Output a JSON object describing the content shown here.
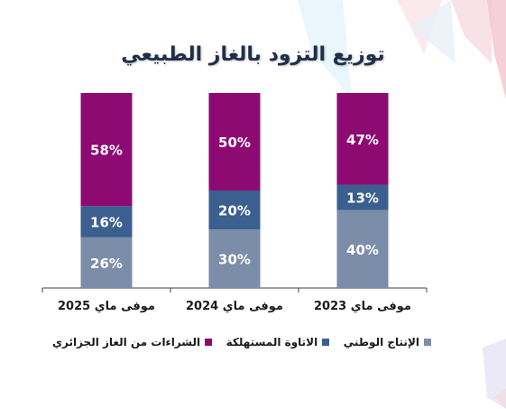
{
  "chart_data": {
    "type": "bar",
    "stacked": true,
    "percent": true,
    "title": "توزيع التزود بالغاز الطبيعي",
    "categories": [
      "موفى ماي  2023",
      "موفى ماي  2024",
      "موفى ماي  2025"
    ],
    "series": [
      {
        "name": "الإنتاج الوطني",
        "color": "#7b8da8",
        "values": [
          40,
          30,
          26
        ]
      },
      {
        "name": "الاتاوة المستهلكة",
        "color": "#3b5f8f",
        "values": [
          13,
          20,
          16
        ]
      },
      {
        "name": "الشراءات من الغاز الجزائري",
        "color": "#8e0a73",
        "values": [
          47,
          50,
          58
        ]
      }
    ],
    "ylim": [
      0,
      100
    ],
    "grid": false,
    "legend_position": "bottom"
  }
}
